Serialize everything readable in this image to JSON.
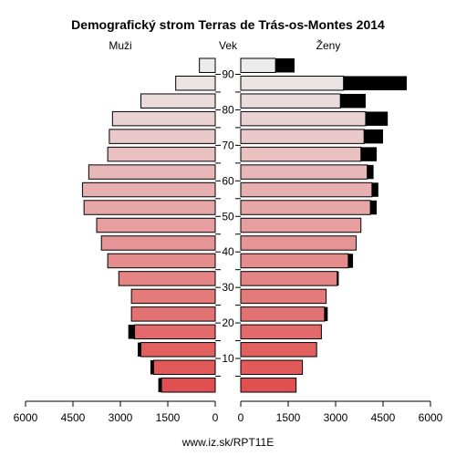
{
  "chart_data": {
    "type": "bar",
    "title": "Demografický strom Terras de Trás-os-Montes 2014",
    "left_label": "Muži",
    "center_label": "Vek",
    "right_label": "Ženy",
    "footer": "www.iz.sk/RPT11E",
    "x_ticks": [
      "6000",
      "4500",
      "3000",
      "1500",
      "0",
      "0",
      "1500",
      "3000",
      "4500",
      "6000"
    ],
    "xlim": [
      0,
      6000
    ],
    "y_ticks": [
      "90",
      "80",
      "70",
      "60",
      "50",
      "40",
      "30",
      "20",
      "10"
    ],
    "age_groups": [
      "0-4",
      "5-9",
      "10-14",
      "15-19",
      "20-24",
      "25-29",
      "30-34",
      "35-39",
      "40-44",
      "45-49",
      "50-54",
      "55-59",
      "60-64",
      "65-69",
      "70-74",
      "75-79",
      "80-84",
      "85-89",
      "90+"
    ],
    "male": [
      1700,
      1950,
      2350,
      2550,
      2650,
      2650,
      3050,
      3400,
      3600,
      3750,
      4150,
      4200,
      4000,
      3400,
      3350,
      3250,
      2350,
      1250,
      500
    ],
    "male_excess": [
      100,
      100,
      100,
      200,
      0,
      0,
      0,
      0,
      0,
      0,
      0,
      0,
      0,
      0,
      0,
      0,
      0,
      0,
      0
    ],
    "female": [
      1750,
      1950,
      2400,
      2550,
      2650,
      2700,
      3050,
      3400,
      3650,
      3800,
      4100,
      4150,
      4000,
      3800,
      3900,
      3950,
      3150,
      3250,
      1100
    ],
    "female_excess": [
      0,
      0,
      0,
      0,
      100,
      0,
      50,
      150,
      0,
      0,
      200,
      200,
      200,
      500,
      600,
      700,
      800,
      2000,
      600
    ],
    "colors": {
      "bottom": "#e05050",
      "top": "#ececec",
      "excess": "#000000"
    }
  }
}
